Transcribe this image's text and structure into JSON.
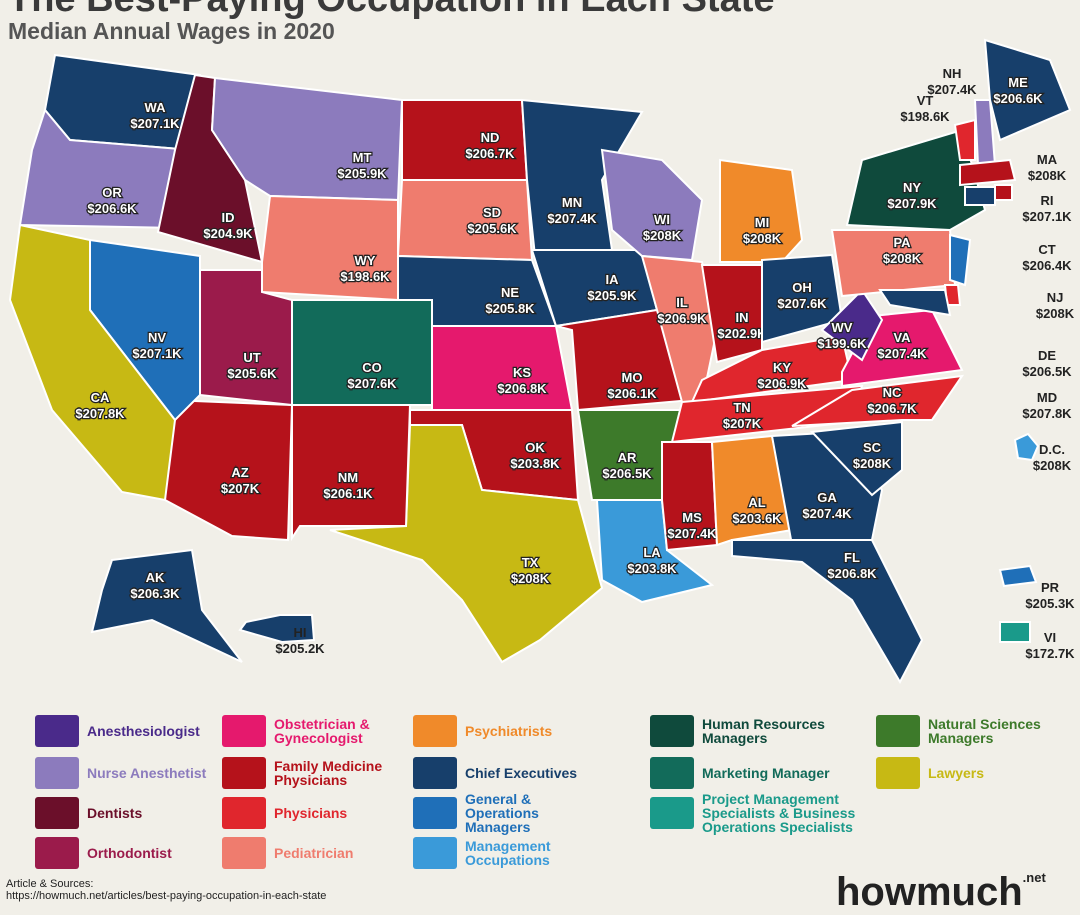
{
  "header": {
    "title": "The Best-Paying Occupation in Each State",
    "subtitle": "Median Annual Wages in 2020"
  },
  "states": [
    {
      "code": "WA",
      "wage": "$207.1K",
      "color": "#173f6b"
    },
    {
      "code": "OR",
      "wage": "$206.6K",
      "color": "#8c7bbd"
    },
    {
      "code": "ID",
      "wage": "$204.9K",
      "color": "#6b0f2a"
    },
    {
      "code": "MT",
      "wage": "$205.9K",
      "color": "#8c7bbd"
    },
    {
      "code": "WY",
      "wage": "$198.6K",
      "color": "#ef7c6e"
    },
    {
      "code": "ND",
      "wage": "$206.7K",
      "color": "#b5121b"
    },
    {
      "code": "SD",
      "wage": "$205.6K",
      "color": "#ef7c6e"
    },
    {
      "code": "NE",
      "wage": "$205.8K",
      "color": "#173f6b"
    },
    {
      "code": "KS",
      "wage": "$206.8K",
      "color": "#e5196d"
    },
    {
      "code": "OK",
      "wage": "$203.8K",
      "color": "#b5121b"
    },
    {
      "code": "TX",
      "wage": "$208K",
      "color": "#c7b914"
    },
    {
      "code": "NM",
      "wage": "$206.1K",
      "color": "#b5121b"
    },
    {
      "code": "CO",
      "wage": "$207.6K",
      "color": "#126b5a"
    },
    {
      "code": "AZ",
      "wage": "$207K",
      "color": "#b5121b"
    },
    {
      "code": "UT",
      "wage": "$205.6K",
      "color": "#9b1b4b"
    },
    {
      "code": "NV",
      "wage": "$207.1K",
      "color": "#1f6fb8"
    },
    {
      "code": "CA",
      "wage": "$207.8K",
      "color": "#c7b914"
    },
    {
      "code": "MN",
      "wage": "$207.4K",
      "color": "#173f6b"
    },
    {
      "code": "IA",
      "wage": "$205.9K",
      "color": "#173f6b"
    },
    {
      "code": "MO",
      "wage": "$206.1K",
      "color": "#b5121b"
    },
    {
      "code": "AR",
      "wage": "$206.5K",
      "color": "#3d7a2a"
    },
    {
      "code": "LA",
      "wage": "$203.8K",
      "color": "#3a9ad9"
    },
    {
      "code": "WI",
      "wage": "$208K",
      "color": "#8c7bbd"
    },
    {
      "code": "IL",
      "wage": "$206.9K",
      "color": "#ef7c6e"
    },
    {
      "code": "MI",
      "wage": "$208K",
      "color": "#f08a2a"
    },
    {
      "code": "IN",
      "wage": "$202.9K",
      "color": "#b5121b"
    },
    {
      "code": "OH",
      "wage": "$207.6K",
      "color": "#173f6b"
    },
    {
      "code": "KY",
      "wage": "$206.9K",
      "color": "#e0262d"
    },
    {
      "code": "TN",
      "wage": "$207K",
      "color": "#e0262d"
    },
    {
      "code": "MS",
      "wage": "$207.4K",
      "color": "#b5121b"
    },
    {
      "code": "AL",
      "wage": "$203.6K",
      "color": "#f08a2a"
    },
    {
      "code": "GA",
      "wage": "$207.4K",
      "color": "#173f6b"
    },
    {
      "code": "FL",
      "wage": "$206.8K",
      "color": "#173f6b"
    },
    {
      "code": "SC",
      "wage": "$208K",
      "color": "#173f6b"
    },
    {
      "code": "NC",
      "wage": "$206.7K",
      "color": "#e0262d"
    },
    {
      "code": "VA",
      "wage": "$207.4K",
      "color": "#e5196d"
    },
    {
      "code": "WV",
      "wage": "$199.6K",
      "color": "#4a2a8a"
    },
    {
      "code": "PA",
      "wage": "$208K",
      "color": "#ef7c6e"
    },
    {
      "code": "NY",
      "wage": "$207.9K",
      "color": "#0f4a3c"
    },
    {
      "code": "VT",
      "wage": "$198.6K",
      "color": "#e0262d"
    },
    {
      "code": "NH",
      "wage": "$207.4K",
      "color": "#8c7bbd"
    },
    {
      "code": "ME",
      "wage": "$206.6K",
      "color": "#173f6b"
    },
    {
      "code": "MA",
      "wage": "$208K",
      "color": "#b5121b"
    },
    {
      "code": "RI",
      "wage": "$207.1K",
      "color": "#b5121b"
    },
    {
      "code": "CT",
      "wage": "$206.4K",
      "color": "#173f6b"
    },
    {
      "code": "NJ",
      "wage": "$208K",
      "color": "#1f6fb8"
    },
    {
      "code": "DE",
      "wage": "$206.5K",
      "color": "#e0262d"
    },
    {
      "code": "MD",
      "wage": "$207.8K",
      "color": "#173f6b"
    },
    {
      "code": "D.C.",
      "wage": "$208K",
      "color": "#3a9ad9"
    },
    {
      "code": "AK",
      "wage": "$206.3K",
      "color": "#173f6b"
    },
    {
      "code": "HI",
      "wage": "$205.2K",
      "color": "#173f6b"
    },
    {
      "code": "PR",
      "wage": "$205.3K",
      "color": "#1f6fb8"
    },
    {
      "code": "VI",
      "wage": "$172.7K",
      "color": "#1a9a8a"
    }
  ],
  "legend": [
    {
      "label": "Anesthesiologist",
      "color": "#4a2a8a"
    },
    {
      "label": "Nurse Anesthetist",
      "color": "#8c7bbd"
    },
    {
      "label": "Dentists",
      "color": "#6b0f2a"
    },
    {
      "label": "Orthodontist",
      "color": "#9b1b4b"
    },
    {
      "label": "Obstetrician & Gynecologist",
      "color": "#e5196d"
    },
    {
      "label": "Family Medicine Physicians",
      "color": "#b5121b"
    },
    {
      "label": "Physicians",
      "color": "#e0262d"
    },
    {
      "label": "Pediatrician",
      "color": "#ef7c6e"
    },
    {
      "label": "Psychiatrists",
      "color": "#f08a2a"
    },
    {
      "label": "Chief Executives",
      "color": "#173f6b"
    },
    {
      "label": "General & Operations Managers",
      "color": "#1f6fb8"
    },
    {
      "label": "Management Occupations",
      "color": "#3a9ad9"
    },
    {
      "label": "Human Resources Managers",
      "color": "#0f4a3c"
    },
    {
      "label": "Marketing Manager",
      "color": "#126b5a"
    },
    {
      "label": "Project Management Specialists & Business Operations Specialists",
      "color": "#1a9a8a"
    },
    {
      "label": "Natural Sciences Managers",
      "color": "#3d7a2a"
    },
    {
      "label": "Lawyers",
      "color": "#c7b914"
    }
  ],
  "footer": {
    "sources_label": "Article & Sources:",
    "url": "https://howmuch.net/articles/best-paying-occupation-in-each-state",
    "logo": "howmuch",
    "logo_suffix": ".net"
  }
}
